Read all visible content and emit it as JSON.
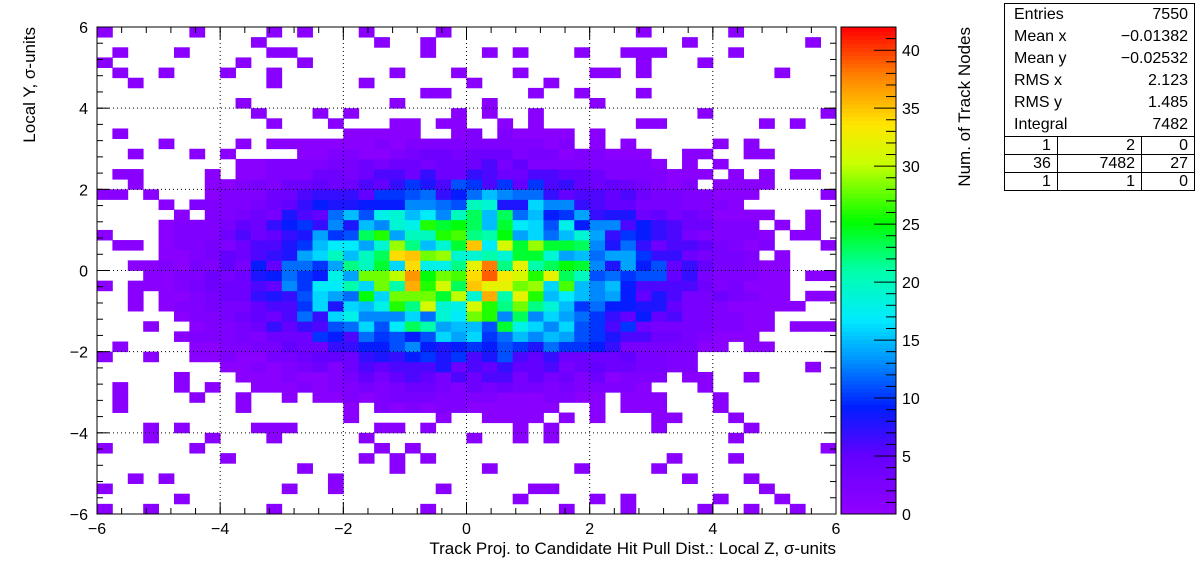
{
  "chart_data": {
    "type": "heatmap",
    "xlabel": "Track Proj. to Candidate Hit Pull Dist.: Local Z, σ-units",
    "ylabel": "Local Y, σ-units",
    "zlabel": "Num. of Track Nodes",
    "xlim": [
      -6,
      6
    ],
    "ylim": [
      -6,
      6
    ],
    "zlim": [
      0,
      42
    ],
    "x_ticks": [
      "−6",
      "−4",
      "−2",
      "0",
      "2",
      "4",
      "6"
    ],
    "y_ticks": [
      "−6",
      "−4",
      "−2",
      "0",
      "2",
      "4",
      "6"
    ],
    "z_ticks": [
      "0",
      "5",
      "10",
      "15",
      "20",
      "25",
      "30",
      "35",
      "40"
    ],
    "bins": {
      "nx": 48,
      "ny": 48
    },
    "distribution": {
      "mean_x": -0.01382,
      "mean_y": -0.02532,
      "rms_x": 2.123,
      "rms_y": 1.485,
      "peak": 41
    },
    "grid": true,
    "colormap": "rainbow"
  },
  "stats": {
    "rows": [
      {
        "label": "Entries",
        "value": "7550"
      },
      {
        "label": "Mean x",
        "value": "−0.01382"
      },
      {
        "label": "Mean y",
        "value": "−0.02532"
      },
      {
        "label": "RMS x",
        "value": "2.123"
      },
      {
        "label": "RMS y",
        "value": "1.485"
      },
      {
        "label": "Integral",
        "value": "7482"
      }
    ],
    "overflow": [
      [
        "1",
        "2",
        "0"
      ],
      [
        "36",
        "7482",
        "27"
      ],
      [
        "1",
        "1",
        "0"
      ]
    ]
  }
}
